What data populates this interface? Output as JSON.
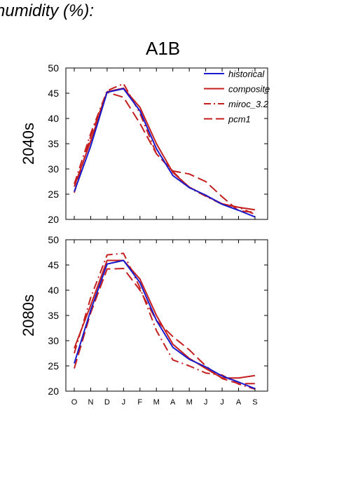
{
  "heading": "humidity (%):",
  "scenario": "A1B",
  "colors": {
    "historical": "#1a1acc",
    "models": "#c41e1e"
  },
  "chart_data": [
    {
      "type": "line",
      "panel_label": "2040s",
      "ylim": [
        20,
        50
      ],
      "yticks": [
        20,
        25,
        30,
        35,
        40,
        45,
        50
      ],
      "categories": [
        "O",
        "N",
        "D",
        "J",
        "F",
        "M",
        "A",
        "M",
        "J",
        "J",
        "A",
        "S"
      ],
      "legend_position": "top-right",
      "series": [
        {
          "name": "historical",
          "style": "solid",
          "color": "#1a1acc",
          "values": [
            25.5,
            34.5,
            45.2,
            45.9,
            41.5,
            34.0,
            28.7,
            26.3,
            24.8,
            23.0,
            21.8,
            20.5
          ]
        },
        {
          "name": "composite",
          "style": "solid",
          "color": "#c41e1e",
          "values": [
            26.5,
            35.5,
            45.3,
            46.0,
            42.2,
            35.0,
            29.3,
            26.4,
            24.7,
            23.1,
            22.4,
            21.9
          ]
        },
        {
          "name": "miroc_3.2",
          "style": "dashdot",
          "color": "#c41e1e",
          "values": [
            27.0,
            37.0,
            45.5,
            46.9,
            41.0,
            33.0,
            29.5,
            26.3,
            24.6,
            23.0,
            22.4,
            21.0
          ]
        },
        {
          "name": "pcm1",
          "style": "dash",
          "color": "#c41e1e",
          "values": [
            25.3,
            36.5,
            45.2,
            44.2,
            39.0,
            33.0,
            29.6,
            29.0,
            27.5,
            24.5,
            21.7,
            21.4
          ]
        }
      ]
    },
    {
      "type": "line",
      "panel_label": "2080s",
      "ylim": [
        20,
        50
      ],
      "yticks": [
        20,
        25,
        30,
        35,
        40,
        45,
        50
      ],
      "categories": [
        "O",
        "N",
        "D",
        "J",
        "F",
        "M",
        "A",
        "M",
        "J",
        "J",
        "A",
        "S"
      ],
      "series": [
        {
          "name": "historical",
          "style": "solid",
          "color": "#1a1acc",
          "values": [
            25.5,
            36.0,
            45.2,
            45.9,
            41.5,
            34.0,
            28.7,
            26.3,
            24.8,
            23.0,
            21.8,
            20.5
          ]
        },
        {
          "name": "composite",
          "style": "solid",
          "color": "#c41e1e",
          "values": [
            28.5,
            37.0,
            45.9,
            45.9,
            42.2,
            35.0,
            29.3,
            26.5,
            24.5,
            22.6,
            22.6,
            23.1
          ]
        },
        {
          "name": "miroc_3.2",
          "style": "dashdot",
          "color": "#c41e1e",
          "values": [
            27.5,
            38.5,
            47.0,
            47.3,
            40.5,
            32.0,
            26.2,
            25.0,
            23.6,
            23.2,
            21.4,
            20.4
          ]
        },
        {
          "name": "pcm1",
          "style": "dash",
          "color": "#c41e1e",
          "values": [
            24.5,
            35.5,
            44.2,
            44.3,
            40.0,
            34.0,
            30.8,
            28.2,
            25.0,
            22.5,
            21.5,
            21.5
          ]
        }
      ]
    }
  ]
}
